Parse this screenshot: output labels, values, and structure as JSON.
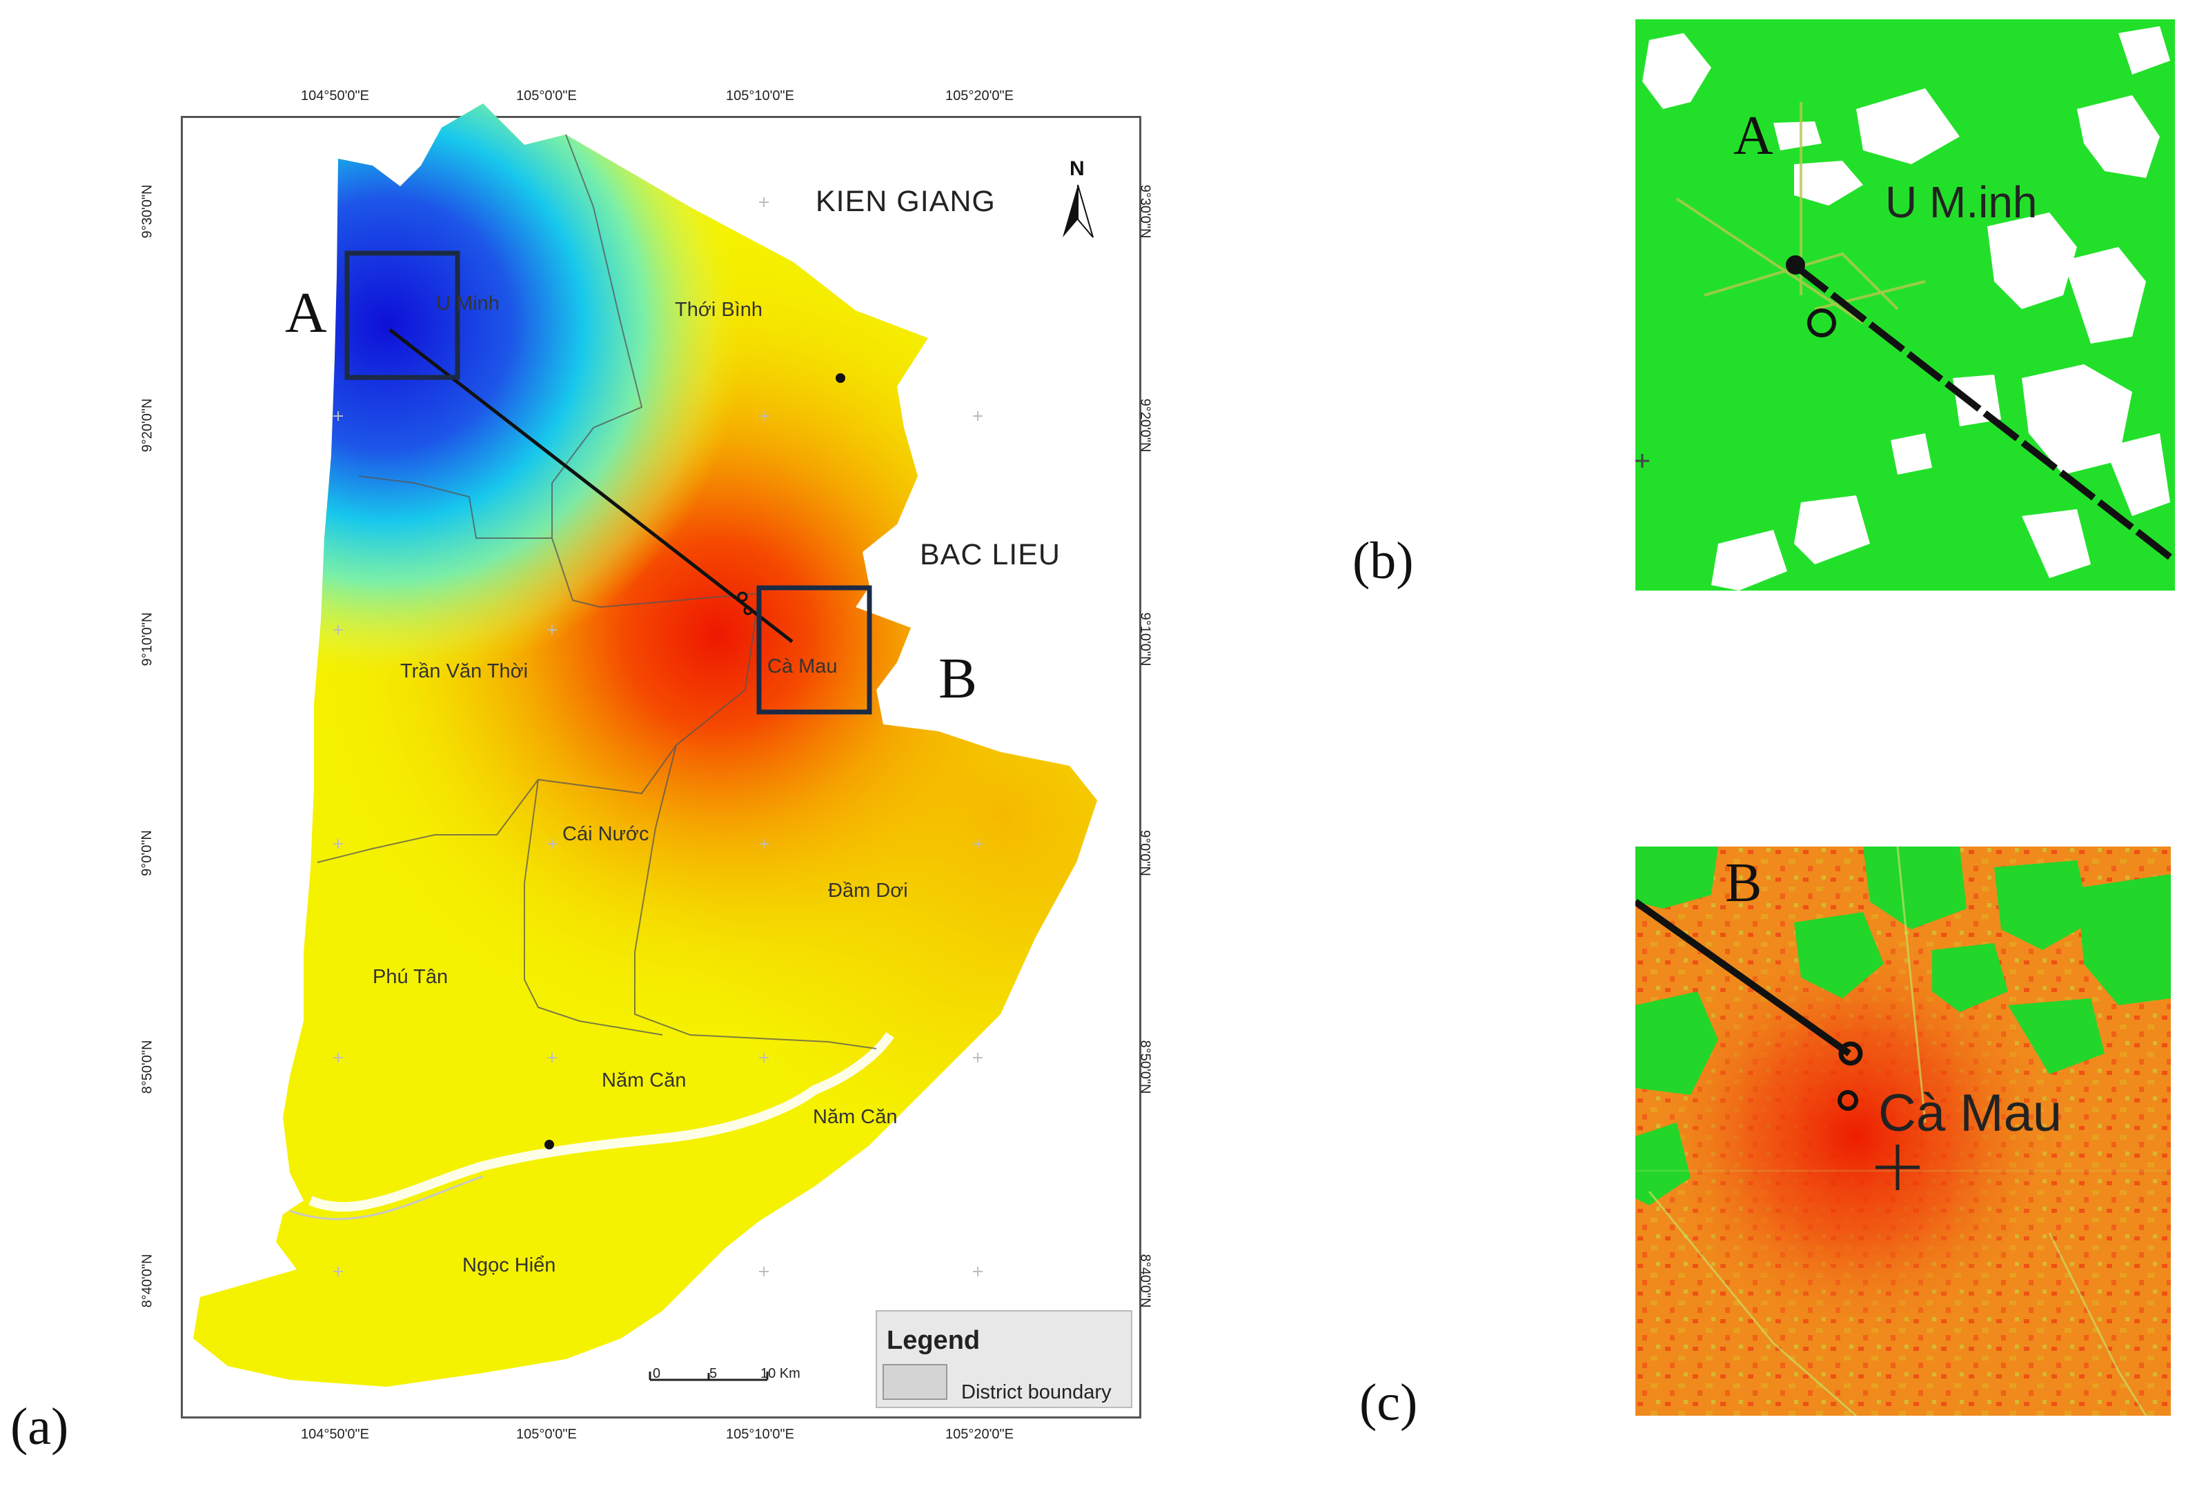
{
  "figure": {
    "panel_a_label": "(a)",
    "panel_b_label": "(b)",
    "panel_c_label": "(c)"
  },
  "map_a": {
    "lon_ticks": [
      "104°50'0\"E",
      "105°0'0\"E",
      "105°10'0\"E",
      "105°20'0\"E"
    ],
    "lat_ticks": [
      "9°30'0\"N",
      "9°20'0\"N",
      "9°10'0\"N",
      "9°0'0\"N",
      "8°50'0\"N",
      "8°40'0\"N"
    ],
    "provinces": {
      "north": "KIEN GIANG",
      "east": "BAC LIEU"
    },
    "districts": [
      "U Minh",
      "Thới Bình",
      "Trần Văn Thời",
      "Cà Mau",
      "Cái Nước",
      "Đầm Dơi",
      "Phú Tân",
      "Năm Căn",
      "Năm Căn",
      "Ngọc Hiển"
    ],
    "box_labels": {
      "a": "A",
      "b": "B"
    },
    "north_arrow": "N",
    "scale_bar": {
      "ticks": [
        "0",
        "5",
        "10 Km"
      ]
    },
    "legend": {
      "title": "Legend",
      "item": "District boundary"
    },
    "colors": {
      "cold": "#1a1ad6",
      "cool": "#19e6e6",
      "mid": "#f5f200",
      "warm": "#f59000",
      "hot": "#ee1c00",
      "box": "#1b2a44"
    }
  },
  "inset_b": {
    "label": "A",
    "place": "U M.inh",
    "background": "#22e02a"
  },
  "inset_c": {
    "label": "B",
    "place": "Cà Mau",
    "background": "#f08a1c"
  }
}
